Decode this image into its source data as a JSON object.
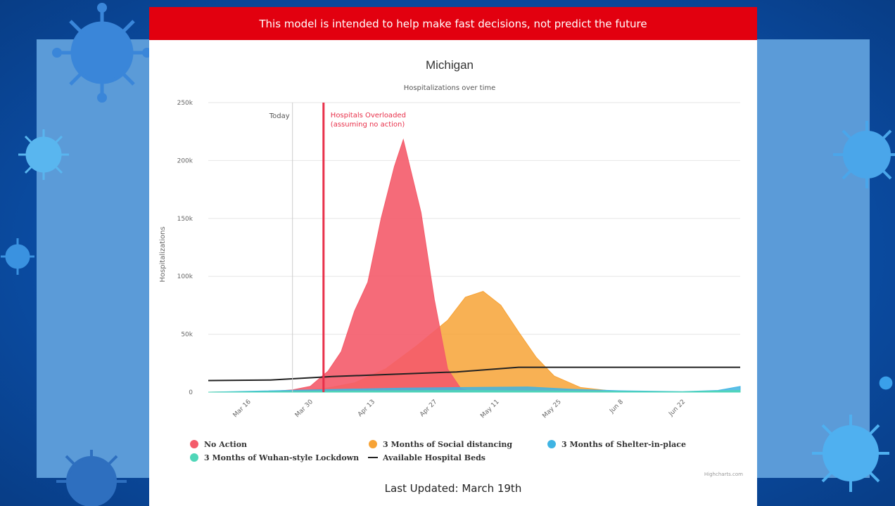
{
  "banner": {
    "text": "This model is intended to help make fast decisions, not predict the future"
  },
  "footer": {
    "last_updated": "Last Updated: March 19th"
  },
  "credit": "Highcharts.com",
  "colors": {
    "no_action": "#f45b6a",
    "social_distancing": "#f7a336",
    "shelter": "#3fb4e3",
    "lockdown": "#4fd6b8",
    "beds": "#222222",
    "overload_line": "#e8304a",
    "banner": "#e2000f"
  },
  "chart_data": {
    "type": "area",
    "title": "Michigan",
    "subtitle": "Hospitalizations over time",
    "xlabel": "",
    "ylabel": "Hospitalizations",
    "ylim": [
      0,
      250000
    ],
    "yticks": [
      0,
      50000,
      100000,
      150000,
      200000,
      250000
    ],
    "ytick_labels": [
      "0",
      "50k",
      "100k",
      "150k",
      "200k",
      "250k"
    ],
    "xlim": [
      "2020-03-07",
      "2020-07-05"
    ],
    "xticks": [
      "2020-03-16",
      "2020-03-30",
      "2020-04-13",
      "2020-04-27",
      "2020-05-11",
      "2020-05-25",
      "2020-06-08",
      "2020-06-22"
    ],
    "xtick_labels": [
      "Mar 16",
      "Mar 30",
      "Apr 13",
      "Apr 27",
      "May 11",
      "May 25",
      "Jun 8",
      "Jun 22"
    ],
    "grid": true,
    "legend_position": "bottom",
    "plot_lines": [
      {
        "date": "2020-03-26",
        "label": "Today",
        "color": "#cccccc",
        "width": 1
      },
      {
        "date": "2020-04-02",
        "label_lines": [
          "Hospitals Overloaded",
          "(assuming no action)"
        ],
        "color": "#e8304a",
        "width": 3
      }
    ],
    "series": [
      {
        "name": "No Action",
        "type": "area",
        "points": [
          [
            "2020-03-07",
            0
          ],
          [
            "2020-03-19",
            0
          ],
          [
            "2020-03-26",
            2000
          ],
          [
            "2020-03-30",
            5000
          ],
          [
            "2020-04-03",
            18000
          ],
          [
            "2020-04-06",
            35000
          ],
          [
            "2020-04-09",
            70000
          ],
          [
            "2020-04-12",
            95000
          ],
          [
            "2020-04-15",
            150000
          ],
          [
            "2020-04-18",
            195000
          ],
          [
            "2020-04-20",
            218000
          ],
          [
            "2020-04-24",
            155000
          ],
          [
            "2020-04-27",
            80000
          ],
          [
            "2020-04-30",
            20000
          ],
          [
            "2020-05-03",
            3000
          ],
          [
            "2020-05-06",
            0
          ],
          [
            "2020-07-05",
            0
          ]
        ]
      },
      {
        "name": "3 Months of Social distancing",
        "type": "area",
        "points": [
          [
            "2020-03-07",
            0
          ],
          [
            "2020-03-26",
            1000
          ],
          [
            "2020-04-02",
            3000
          ],
          [
            "2020-04-09",
            8000
          ],
          [
            "2020-04-16",
            20000
          ],
          [
            "2020-04-23",
            40000
          ],
          [
            "2020-04-30",
            62000
          ],
          [
            "2020-05-04",
            82000
          ],
          [
            "2020-05-08",
            87000
          ],
          [
            "2020-05-12",
            75000
          ],
          [
            "2020-05-16",
            52000
          ],
          [
            "2020-05-20",
            30000
          ],
          [
            "2020-05-24",
            14000
          ],
          [
            "2020-05-30",
            4000
          ],
          [
            "2020-06-07",
            600
          ],
          [
            "2020-06-15",
            0
          ],
          [
            "2020-07-05",
            0
          ]
        ]
      },
      {
        "name": "3 Months of Shelter-in-place",
        "type": "area",
        "points": [
          [
            "2020-03-07",
            0
          ],
          [
            "2020-04-06",
            2500
          ],
          [
            "2020-04-20",
            3500
          ],
          [
            "2020-05-04",
            4000
          ],
          [
            "2020-05-18",
            4500
          ],
          [
            "2020-05-28",
            2500
          ],
          [
            "2020-06-08",
            1200
          ],
          [
            "2020-06-22",
            400
          ],
          [
            "2020-06-30",
            1500
          ],
          [
            "2020-07-05",
            5000
          ]
        ]
      },
      {
        "name": "3 Months of Wuhan-style Lockdown",
        "type": "area",
        "points": [
          [
            "2020-03-07",
            0
          ],
          [
            "2020-04-06",
            1000
          ],
          [
            "2020-05-04",
            1500
          ],
          [
            "2020-06-01",
            800
          ],
          [
            "2020-06-22",
            300
          ],
          [
            "2020-07-05",
            1500
          ]
        ]
      },
      {
        "name": "Available Hospital Beds",
        "type": "line",
        "points": [
          [
            "2020-03-07",
            10000
          ],
          [
            "2020-03-21",
            10500
          ],
          [
            "2020-04-04",
            13500
          ],
          [
            "2020-04-18",
            15500
          ],
          [
            "2020-05-02",
            17500
          ],
          [
            "2020-05-16",
            21500
          ],
          [
            "2020-05-30",
            21500
          ],
          [
            "2020-06-13",
            21500
          ],
          [
            "2020-07-05",
            21500
          ]
        ]
      }
    ]
  }
}
